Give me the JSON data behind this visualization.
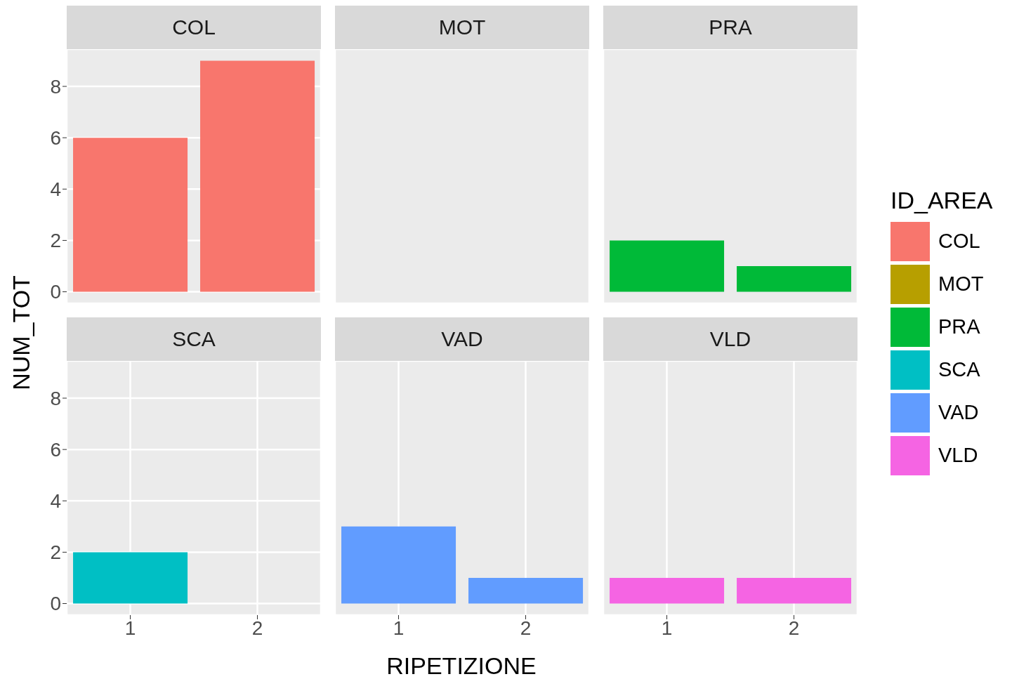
{
  "chart_data": [
    {
      "type": "bar",
      "title": "COL",
      "ylabel": "NUM_TOT",
      "legend_title": "ID_AREA",
      "legend": "right",
      "grid": true,
      "tick_labels": "y",
      "categories": [
        "1",
        "2"
      ],
      "ylim": [
        -0.45,
        9.45
      ],
      "yticks": [
        0,
        2,
        4,
        6,
        8
      ],
      "series": [
        {
          "name": "COL",
          "color": "#f8766d",
          "values": [
            6,
            9
          ]
        }
      ]
    },
    {
      "type": "bar",
      "title": "MOT",
      "legend": "right",
      "grid": true,
      "tick_labels": false,
      "categories": [
        "1",
        "2"
      ],
      "ylim": [
        -0.45,
        9.45
      ],
      "yticks": [
        0,
        2,
        4,
        6,
        8
      ],
      "series": [
        {
          "name": "MOT",
          "color": "#b79f00",
          "values": [
            null,
            null
          ]
        }
      ]
    },
    {
      "type": "bar",
      "title": "PRA",
      "legend": "right",
      "grid": true,
      "tick_labels": false,
      "categories": [
        "1",
        "2"
      ],
      "ylim": [
        -0.45,
        9.45
      ],
      "yticks": [
        0,
        2,
        4,
        6,
        8
      ],
      "series": [
        {
          "name": "PRA",
          "color": "#00ba38",
          "values": [
            2,
            1
          ]
        }
      ]
    },
    {
      "type": "bar",
      "title": "SCA",
      "legend": "right",
      "grid": true,
      "categories": [
        "1",
        "2"
      ],
      "ylim": [
        -0.45,
        9.45
      ],
      "yticks": [
        0,
        2,
        4,
        6,
        8
      ],
      "series": [
        {
          "name": "SCA",
          "color": "#00bfc4",
          "values": [
            2,
            null
          ]
        }
      ]
    },
    {
      "type": "bar",
      "title": "VAD",
      "xlabel": "RIPETIZIONE",
      "legend": "right",
      "grid": true,
      "tick_labels": "x",
      "categories": [
        "1",
        "2"
      ],
      "ylim": [
        -0.45,
        9.45
      ],
      "yticks": [
        0,
        2,
        4,
        6,
        8
      ],
      "series": [
        {
          "name": "VAD",
          "color": "#619cff",
          "values": [
            3,
            1
          ]
        }
      ]
    },
    {
      "type": "bar",
      "title": "VLD",
      "legend": "right",
      "grid": true,
      "tick_labels": "x",
      "categories": [
        "1",
        "2"
      ],
      "ylim": [
        -0.45,
        9.45
      ],
      "yticks": [
        0,
        2,
        4,
        6,
        8
      ],
      "series": [
        {
          "name": "VLD",
          "color": "#f564e3",
          "values": [
            1,
            1
          ]
        }
      ]
    }
  ]
}
